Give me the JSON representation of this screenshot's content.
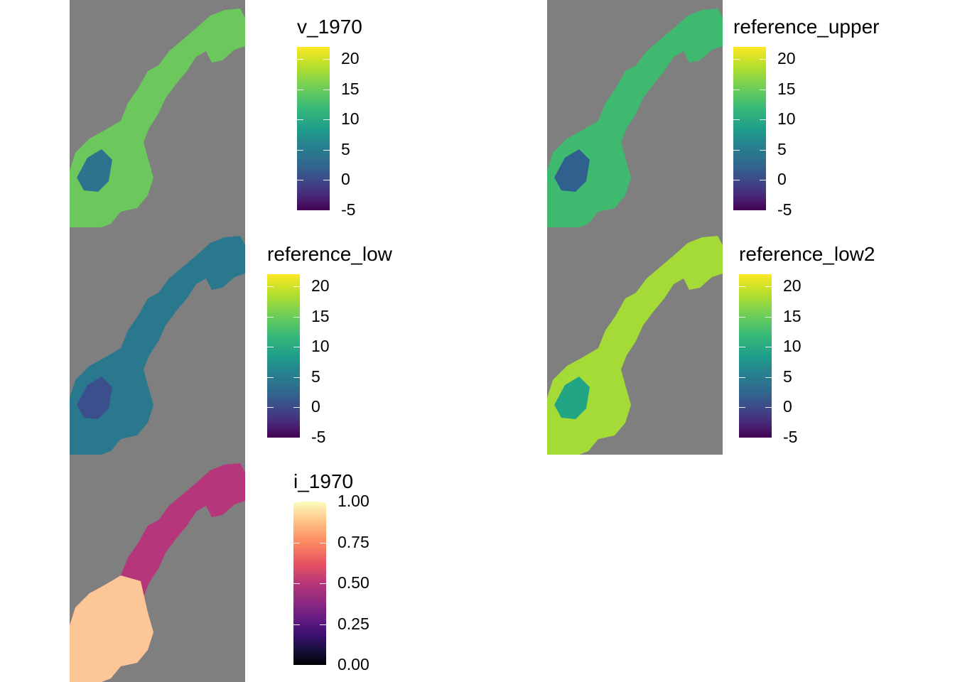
{
  "panels": [
    {
      "id": "v_1970",
      "legend_title": "v_1970",
      "palette": "viridis",
      "tick_labels": [
        "20",
        "15",
        "10",
        "5",
        "0",
        "-5"
      ],
      "fill": "#6cc75c",
      "inner_fill": "#2c748e"
    },
    {
      "id": "reference_upper",
      "legend_title": "reference_upper",
      "palette": "viridis",
      "tick_labels": [
        "20",
        "15",
        "10",
        "5",
        "0",
        "-5"
      ],
      "fill": "#3fb970",
      "inner_fill": "#30608d"
    },
    {
      "id": "reference_low",
      "legend_title": "reference_low",
      "palette": "viridis",
      "tick_labels": [
        "20",
        "15",
        "10",
        "5",
        "0",
        "-5"
      ],
      "fill": "#2a788e",
      "inner_fill": "#3b4f8c"
    },
    {
      "id": "reference_low2",
      "legend_title": "reference_low2",
      "palette": "viridis",
      "tick_labels": [
        "20",
        "15",
        "10",
        "5",
        "0",
        "-5"
      ],
      "fill": "#a5db36",
      "inner_fill": "#21a585"
    },
    {
      "id": "i_1970",
      "legend_title": "i_1970",
      "palette": "magma",
      "tick_labels": [
        "1.00",
        "0.75",
        "0.50",
        "0.25",
        "0.00"
      ],
      "fill": "#b5367a",
      "inner_fill": "#fcc696"
    }
  ],
  "background_color": "#7f7f7f"
}
